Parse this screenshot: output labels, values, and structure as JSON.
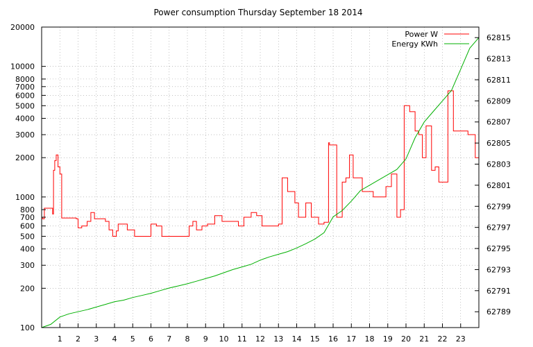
{
  "chart_data": {
    "type": "line",
    "title": "Power consumption Thursday September 18 2014",
    "x": {
      "range": [
        0,
        24
      ],
      "ticks": [
        1,
        2,
        3,
        4,
        5,
        6,
        7,
        8,
        9,
        10,
        11,
        12,
        13,
        14,
        15,
        16,
        17,
        18,
        19,
        20,
        21,
        22,
        23
      ]
    },
    "y_left": {
      "scale": "log",
      "range": [
        100,
        20000
      ],
      "ticks": [
        100,
        200,
        300,
        400,
        500,
        600,
        700,
        800,
        1000,
        2000,
        3000,
        4000,
        5000,
        6000,
        7000,
        8000,
        10000,
        20000
      ]
    },
    "y_right": {
      "range": [
        62787.5,
        62816
      ],
      "ticks": [
        62789,
        62791,
        62793,
        62795,
        62797,
        62799,
        62801,
        62803,
        62805,
        62807,
        62809,
        62811,
        62813,
        62815
      ]
    },
    "grid": true,
    "legend": "top-right",
    "series": [
      {
        "name": "Power W",
        "axis": "left",
        "color": "#ff0000",
        "style": "step",
        "x": [
          0,
          0.05,
          0.15,
          0.6,
          0.65,
          0.72,
          0.8,
          0.9,
          1.0,
          1.1,
          1.2,
          1.3,
          1.5,
          1.9,
          2.0,
          2.2,
          2.5,
          2.7,
          2.9,
          3.5,
          3.7,
          3.9,
          4.1,
          4.2,
          4.5,
          4.7,
          5.1,
          5.5,
          5.7,
          5.9,
          6.0,
          6.3,
          6.6,
          7.0,
          7.5,
          7.9,
          8.1,
          8.3,
          8.5,
          8.8,
          9.1,
          9.5,
          9.9,
          10.1,
          10.4,
          10.8,
          11.1,
          11.5,
          11.8,
          12.1,
          12.5,
          13.0,
          13.2,
          13.5,
          13.9,
          14.1,
          14.5,
          14.8,
          15.0,
          15.2,
          15.5,
          15.75,
          15.8,
          16.2,
          16.5,
          16.7,
          16.9,
          17.1,
          17.3,
          17.6,
          18.2,
          18.6,
          18.9,
          19.2,
          19.5,
          19.7,
          19.9,
          20.2,
          20.5,
          20.7,
          20.9,
          21.1,
          21.4,
          21.6,
          21.8,
          22.0,
          22.3,
          22.6,
          22.8,
          23.0,
          23.4,
          23.8
        ],
        "y": [
          700,
          680,
          820,
          740,
          1600,
          1900,
          2100,
          1700,
          1500,
          690,
          690,
          690,
          690,
          680,
          580,
          600,
          650,
          760,
          680,
          650,
          560,
          500,
          550,
          620,
          620,
          560,
          500,
          500,
          500,
          500,
          620,
          600,
          500,
          500,
          500,
          500,
          600,
          650,
          560,
          600,
          620,
          720,
          650,
          650,
          650,
          600,
          700,
          760,
          720,
          600,
          600,
          620,
          1400,
          1100,
          900,
          700,
          900,
          700,
          700,
          620,
          640,
          2600,
          2500,
          700,
          1300,
          1400,
          2100,
          1400,
          1400,
          1100,
          1000,
          1000,
          1200,
          1500,
          700,
          800,
          5000,
          4500,
          3200,
          3000,
          2000,
          3500,
          1600,
          1700,
          1300,
          1300,
          6500,
          3200,
          3200,
          3200,
          3000,
          2000
        ]
      },
      {
        "name": "Energy KWh",
        "axis": "right",
        "color": "#00b000",
        "style": "line",
        "x": [
          0,
          0.5,
          1.0,
          1.5,
          2.0,
          2.5,
          3.0,
          3.5,
          4.0,
          4.5,
          5.0,
          5.5,
          6.0,
          6.5,
          7.0,
          7.5,
          8.0,
          8.5,
          9.0,
          9.5,
          10.0,
          10.5,
          11.0,
          11.5,
          12.0,
          12.5,
          13.0,
          13.5,
          14.0,
          14.5,
          15.0,
          15.5,
          16.0,
          16.5,
          17.0,
          17.5,
          18.0,
          18.5,
          19.0,
          19.5,
          20.0,
          20.5,
          21.0,
          21.5,
          22.0,
          22.5,
          23.0,
          23.5,
          24.0
        ],
        "y": [
          62787.5,
          62787.8,
          62788.5,
          62788.8,
          62789.0,
          62789.2,
          62789.45,
          62789.7,
          62789.95,
          62790.1,
          62790.35,
          62790.55,
          62790.75,
          62791.0,
          62791.25,
          62791.45,
          62791.65,
          62791.9,
          62792.15,
          62792.4,
          62792.7,
          62793.0,
          62793.25,
          62793.5,
          62793.9,
          62794.2,
          62794.45,
          62794.7,
          62795.05,
          62795.45,
          62795.9,
          62796.5,
          62798.0,
          62798.6,
          62799.5,
          62800.5,
          62801.0,
          62801.5,
          62802.0,
          62802.5,
          62803.5,
          62805.5,
          62807.0,
          62808.0,
          62809.0,
          62810.0,
          62812.0,
          62814.0,
          62815.0
        ]
      }
    ]
  }
}
